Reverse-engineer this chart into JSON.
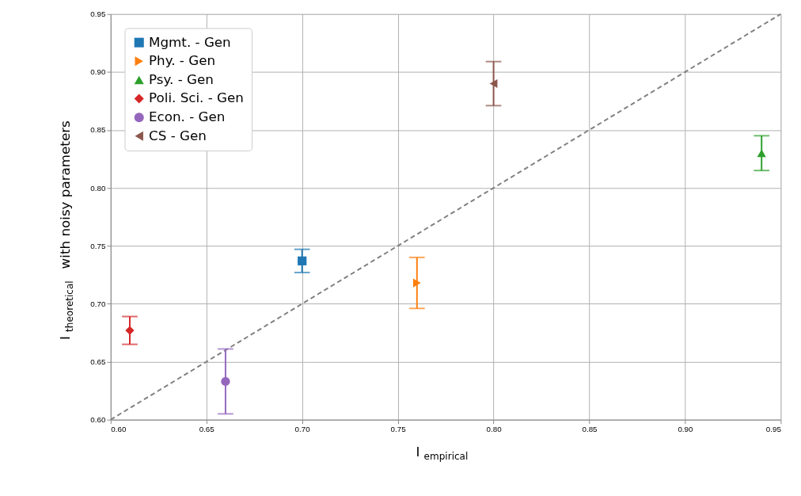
{
  "chart_data": {
    "type": "scatter",
    "xlabel": "I$_{empirical}$",
    "ylabel": "I$_{theoretical}$ with noisy parameters",
    "xlim": [
      0.6,
      0.95
    ],
    "ylim": [
      0.6,
      0.95
    ],
    "xticks": [
      {
        "value": 0.6,
        "label": "0.60"
      },
      {
        "value": 0.65,
        "label": "0.65"
      },
      {
        "value": 0.7,
        "label": "0.70"
      },
      {
        "value": 0.75,
        "label": "0.75"
      },
      {
        "value": 0.8,
        "label": "0.80"
      },
      {
        "value": 0.85,
        "label": "0.85"
      },
      {
        "value": 0.9,
        "label": "0.90"
      },
      {
        "value": 0.95,
        "label": "0.95"
      }
    ],
    "yticks": [
      {
        "value": 0.6,
        "label": "0.60"
      },
      {
        "value": 0.65,
        "label": "0.65"
      },
      {
        "value": 0.7,
        "label": "0.70"
      },
      {
        "value": 0.75,
        "label": "0.75"
      },
      {
        "value": 0.8,
        "label": "0.80"
      },
      {
        "value": 0.85,
        "label": "0.85"
      },
      {
        "value": 0.9,
        "label": "0.90"
      },
      {
        "value": 0.95,
        "label": "0.95"
      }
    ],
    "grid": true,
    "legend": "top left",
    "series": [
      {
        "name": "Mgmt. - Gen",
        "color": "#1f77b4",
        "marker": "square",
        "x": [
          0.7
        ],
        "values": [
          0.737
        ],
        "errors": [
          0.01
        ]
      },
      {
        "name": "Phy. - Gen",
        "color": "#ff7f0e",
        "marker": "triangle-right",
        "x": [
          0.76
        ],
        "values": [
          0.718
        ],
        "errors": [
          0.022
        ]
      },
      {
        "name": "Psy. - Gen",
        "color": "#2ca02c",
        "marker": "triangle",
        "x": [
          0.94
        ],
        "values": [
          0.83
        ],
        "errors": [
          0.015
        ]
      },
      {
        "name": "Poli. Sci. - Gen",
        "color": "#d62728",
        "marker": "diamond",
        "x": [
          0.61
        ],
        "values": [
          0.677
        ],
        "errors": [
          0.012
        ]
      },
      {
        "name": "Econ. - Gen",
        "color": "#9467bd",
        "marker": "circle",
        "x": [
          0.66
        ],
        "values": [
          0.633
        ],
        "errors": [
          0.028
        ]
      },
      {
        "name": "CS - Gen",
        "color": "#8c564b",
        "marker": "triangle-left",
        "x": [
          0.8
        ],
        "values": [
          0.89
        ],
        "errors": [
          0.019
        ]
      },
      {
        "type": "line",
        "color": "#808080",
        "line_style": "dashed",
        "marker": "none",
        "x": [
          0.6,
          0.95
        ],
        "values": [
          0.6,
          0.95
        ]
      }
    ]
  }
}
